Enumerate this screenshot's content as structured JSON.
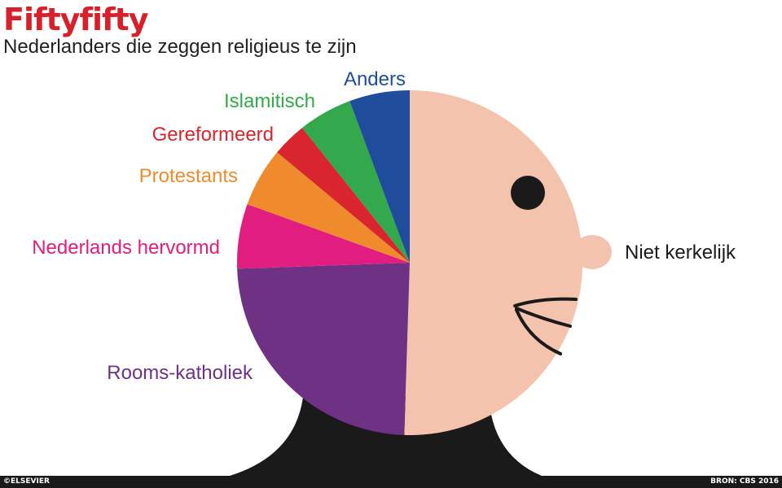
{
  "title": "Fiftyfifty",
  "subtitle": "Nederlanders die zeggen religieus te zijn",
  "footer": {
    "credit": "©ELSEVIER",
    "source": "BRON: CBS 2016"
  },
  "colors": {
    "head": "#f4c3ad",
    "neck": "#1a1a1a",
    "eye": "#1a1a1a"
  },
  "chart_data": {
    "type": "pie",
    "title": "Nederlanders die zeggen religieus te zijn",
    "slices": [
      {
        "label": "Niet kerkelijk",
        "value": 50.0,
        "color": "#f4c3ad",
        "label_color": "#1a1a1a"
      },
      {
        "label": "Rooms-katholiek",
        "value": 23.7,
        "color": "#6f3183",
        "label_color": "#6f3183"
      },
      {
        "label": "Nederlands hervormd",
        "value": 6.0,
        "color": "#e21d80",
        "label_color": "#e21d80"
      },
      {
        "label": "Protestants",
        "value": 5.5,
        "color": "#ef8b2c",
        "label_color": "#ef8b2c"
      },
      {
        "label": "Gereformeerd",
        "value": 3.2,
        "color": "#d8252e",
        "label_color": "#d8252e"
      },
      {
        "label": "Islamitisch",
        "value": 5.0,
        "color": "#33a84c",
        "label_color": "#33a84c"
      },
      {
        "label": "Anders",
        "value": 5.6,
        "color": "#1f4d9c",
        "label_color": "#1f4d9c"
      }
    ]
  }
}
